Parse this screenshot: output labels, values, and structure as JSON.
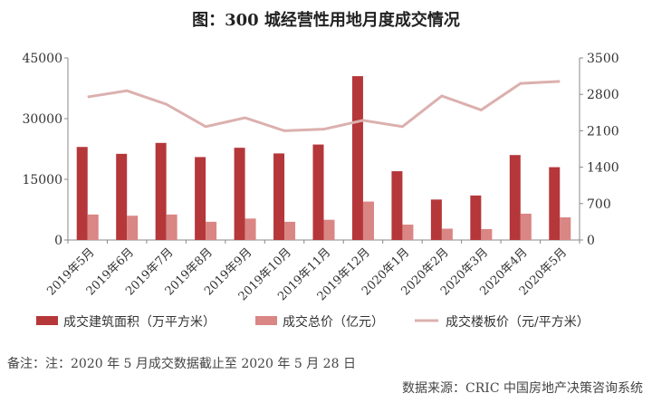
{
  "title": "图：300 城经营性用地月度成交情况",
  "note": "备注：注：2020 年 5 月成交数据截止至 2020 年 5 月 28 日",
  "source": "数据来源：CRIC 中国房地产决策咨询系统",
  "colors": {
    "area": "#b5373a",
    "total": "#d98684",
    "price": "#dbb0ae",
    "axis": "#888888",
    "text": "#333333"
  },
  "chart_data": {
    "type": "bar",
    "categories": [
      "2019年5月",
      "2019年6月",
      "2019年7月",
      "2019年8月",
      "2019年9月",
      "2019年10月",
      "2019年11月",
      "2019年12月",
      "2020年1月",
      "2020年2月",
      "2020年3月",
      "2020年4月",
      "2020年5月"
    ],
    "series": [
      {
        "name": "成交建筑面积（万平方米）",
        "type": "bar",
        "axis": "left",
        "values": [
          23000,
          21300,
          24000,
          20500,
          22800,
          21400,
          23600,
          40500,
          17000,
          10000,
          11000,
          21000,
          18000
        ]
      },
      {
        "name": "成交总价（亿元）",
        "type": "bar",
        "axis": "left",
        "values": [
          6300,
          6000,
          6300,
          4500,
          5300,
          4500,
          5000,
          9500,
          3800,
          2800,
          2700,
          6500,
          5600
        ]
      },
      {
        "name": "成交楼板价（元/平方米）",
        "type": "line",
        "axis": "right",
        "values": [
          2750,
          2870,
          2610,
          2180,
          2350,
          2100,
          2130,
          2300,
          2180,
          2770,
          2500,
          3010,
          3050
        ]
      }
    ],
    "y_left": {
      "min": 0,
      "max": 45000,
      "ticks": [
        0,
        15000,
        30000,
        45000
      ]
    },
    "y_right": {
      "min": 0,
      "max": 3500,
      "ticks": [
        0,
        700,
        1400,
        2100,
        2800,
        3500
      ]
    },
    "legend_position": "bottom"
  }
}
